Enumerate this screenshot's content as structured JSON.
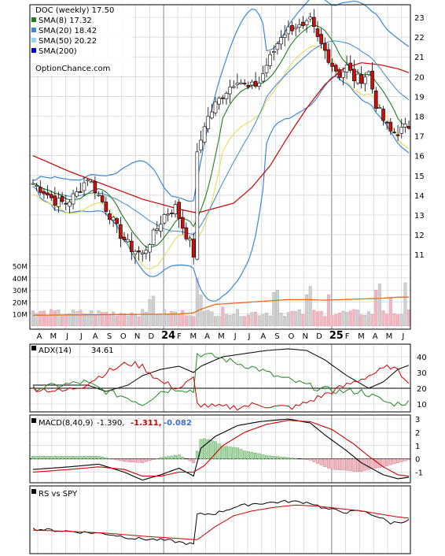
{
  "colors": {
    "grid": "#c8c8c8",
    "frame": "#000000",
    "sma8": "#1e7d1e",
    "sma20": "#3a87d6",
    "sma50": "#9bd2f0",
    "sma200": "#0000cc",
    "long_ma": "#cc0000",
    "band_low": "#e8d84a",
    "candle_up": "#ffffff",
    "candle_down": "#cc1111",
    "volume_up": "#d0d0d0",
    "volume_down": "#f0b8c0",
    "volume_ma": "#e07020",
    "adx": "#000000",
    "plus_di": "#228822",
    "minus_di": "#cc0000",
    "macd": "#000000",
    "signal": "#cc0000",
    "hist_pos": "#a6d8a6",
    "hist_neg": "#f0b8c0",
    "macd_val1": "#cc0000",
    "macd_val2": "#3a6fd6",
    "rs": "#000000",
    "rs_ma": "#cc0000"
  },
  "chart_data": [
    {
      "type": "candlestick",
      "panel": "price",
      "legend": {
        "title": "DOC (weekly) 17.50",
        "items": [
          {
            "label": "SMA(8) 17.32",
            "color": "#1e7d1e"
          },
          {
            "label": "SMA(20) 18.42",
            "color": "#3a87d6"
          },
          {
            "label": "SMA(50) 20.22",
            "color": "#9bd2f0"
          },
          {
            "label": "SMA(200)",
            "color": "#0000cc"
          }
        ],
        "source": "OptionChance.com"
      },
      "y_ticks": [
        "23",
        "22",
        "21",
        "20",
        "19",
        "18",
        "17",
        "16",
        "15",
        "14",
        "13",
        "12",
        "11"
      ],
      "y_tick_values": [
        23,
        22,
        21,
        20,
        19,
        18,
        17,
        16,
        15,
        14,
        13,
        12,
        11
      ],
      "ylim": [
        10,
        23.5
      ],
      "x_tick_labels": [
        "A",
        "M",
        "J",
        "J",
        "A",
        "S",
        "O",
        "N",
        "D",
        "24",
        "F",
        "M",
        "A",
        "M",
        "J",
        "J",
        "A",
        "S",
        "O",
        "N",
        "D",
        "25",
        "F",
        "M",
        "A",
        "M",
        "J"
      ],
      "weeks": 104,
      "anchors_close": [
        [
          0,
          14.6
        ],
        [
          3,
          14.2
        ],
        [
          6,
          13.7
        ],
        [
          9,
          13.6
        ],
        [
          12,
          14.1
        ],
        [
          15,
          14.9
        ],
        [
          18,
          14.0
        ],
        [
          21,
          13.0
        ],
        [
          24,
          12.0
        ],
        [
          27,
          11.3
        ],
        [
          30,
          11.0
        ],
        [
          33,
          12.0
        ],
        [
          36,
          13.0
        ],
        [
          39,
          13.4
        ],
        [
          41,
          12.4
        ],
        [
          43,
          11.6
        ],
        [
          44,
          11.0
        ],
        [
          45,
          16.0
        ],
        [
          47,
          17.6
        ],
        [
          50,
          18.6
        ],
        [
          53,
          19.3
        ],
        [
          56,
          19.9
        ],
        [
          59,
          19.4
        ],
        [
          62,
          19.7
        ],
        [
          64,
          20.6
        ],
        [
          66,
          21.3
        ],
        [
          68,
          22.1
        ],
        [
          70,
          22.4
        ],
        [
          72,
          22.6
        ],
        [
          74,
          22.4
        ],
        [
          76,
          22.8
        ],
        [
          78,
          21.9
        ],
        [
          80,
          21.3
        ],
        [
          82,
          20.6
        ],
        [
          84,
          20.1
        ],
        [
          86,
          20.5
        ],
        [
          88,
          19.9
        ],
        [
          90,
          19.9
        ],
        [
          92,
          20.2
        ],
        [
          94,
          18.6
        ],
        [
          96,
          17.8
        ],
        [
          98,
          17.2
        ],
        [
          100,
          17.2
        ],
        [
          103,
          17.5
        ]
      ],
      "sma200_anchors": [
        [
          0,
          16.0
        ],
        [
          10,
          15.2
        ],
        [
          20,
          14.5
        ],
        [
          30,
          13.8
        ],
        [
          40,
          13.3
        ],
        [
          45,
          13.1
        ],
        [
          55,
          13.6
        ],
        [
          60,
          14.4
        ],
        [
          65,
          15.5
        ],
        [
          70,
          17.0
        ],
        [
          75,
          18.4
        ],
        [
          80,
          19.6
        ],
        [
          85,
          20.4
        ],
        [
          90,
          20.7
        ],
        [
          95,
          20.6
        ],
        [
          100,
          20.4
        ],
        [
          103,
          20.2
        ]
      ],
      "volume": {
        "y_ticks": [
          "50M",
          "40M",
          "30M",
          "20M",
          "10M"
        ],
        "y_tick_values": [
          50,
          40,
          30,
          20,
          10
        ],
        "ylim": [
          0,
          55
        ],
        "base_m": 8,
        "spikes": [
          [
            32,
            22
          ],
          [
            33,
            25
          ],
          [
            45,
            40
          ],
          [
            46,
            26
          ],
          [
            52,
            16
          ],
          [
            53,
            10
          ],
          [
            66,
            28
          ],
          [
            67,
            30
          ],
          [
            75,
            26
          ],
          [
            76,
            33
          ],
          [
            81,
            26
          ],
          [
            94,
            30
          ],
          [
            95,
            35
          ],
          [
            98,
            24
          ],
          [
            102,
            36
          ]
        ],
        "ma_anchors": [
          [
            0,
            9
          ],
          [
            20,
            9.5
          ],
          [
            40,
            10
          ],
          [
            44,
            11
          ],
          [
            46,
            14
          ],
          [
            50,
            18
          ],
          [
            55,
            19
          ],
          [
            60,
            20
          ],
          [
            65,
            21
          ],
          [
            70,
            22
          ],
          [
            75,
            22
          ],
          [
            80,
            21.5
          ],
          [
            85,
            22
          ],
          [
            90,
            22.5
          ],
          [
            95,
            23
          ],
          [
            100,
            24
          ],
          [
            103,
            24
          ]
        ]
      }
    },
    {
      "type": "line",
      "panel": "adx",
      "label_name": "ADX(14)",
      "label_value": "34.61",
      "y_ticks": [
        "40",
        "30",
        "20",
        "10"
      ],
      "y_tick_values": [
        40,
        30,
        20,
        10
      ],
      "ylim": [
        5,
        48
      ],
      "series": [
        {
          "name": "ADX",
          "color": "#000000",
          "anchors": [
            [
              0,
              22
            ],
            [
              8,
              22
            ],
            [
              15,
              22
            ],
            [
              20,
              18
            ],
            [
              26,
              22
            ],
            [
              30,
              28
            ],
            [
              35,
              32
            ],
            [
              40,
              34
            ],
            [
              44,
              30
            ],
            [
              46,
              34
            ],
            [
              52,
              40
            ],
            [
              58,
              42
            ],
            [
              64,
              44
            ],
            [
              70,
              45
            ],
            [
              75,
              44
            ],
            [
              80,
              38
            ],
            [
              86,
              28
            ],
            [
              92,
              20
            ],
            [
              96,
              24
            ],
            [
              100,
              32
            ],
            [
              103,
              34.6
            ]
          ]
        },
        {
          "name": "+DI",
          "color": "#228822",
          "anchors": [
            [
              0,
              20
            ],
            [
              8,
              22
            ],
            [
              14,
              24
            ],
            [
              20,
              18
            ],
            [
              26,
              14
            ],
            [
              30,
              10
            ],
            [
              35,
              18
            ],
            [
              40,
              20
            ],
            [
              44,
              18
            ],
            [
              45,
              42
            ],
            [
              50,
              40
            ],
            [
              56,
              36
            ],
            [
              62,
              32
            ],
            [
              66,
              28
            ],
            [
              72,
              24
            ],
            [
              78,
              20
            ],
            [
              84,
              18
            ],
            [
              90,
              18
            ],
            [
              94,
              14
            ],
            [
              98,
              10
            ],
            [
              103,
              11
            ]
          ]
        },
        {
          "name": "-DI",
          "color": "#cc0000",
          "anchors": [
            [
              0,
              20
            ],
            [
              8,
              18
            ],
            [
              14,
              22
            ],
            [
              20,
              30
            ],
            [
              26,
              36
            ],
            [
              30,
              34
            ],
            [
              35,
              24
            ],
            [
              40,
              20
            ],
            [
              44,
              26
            ],
            [
              45,
              10
            ],
            [
              50,
              8
            ],
            [
              56,
              8
            ],
            [
              62,
              10
            ],
            [
              66,
              8
            ],
            [
              72,
              8
            ],
            [
              78,
              14
            ],
            [
              84,
              20
            ],
            [
              90,
              26
            ],
            [
              94,
              30
            ],
            [
              98,
              34
            ],
            [
              103,
              25
            ]
          ]
        }
      ]
    },
    {
      "type": "line",
      "panel": "macd",
      "label_name": "MACD(8,40,9)",
      "label_value": "-1.390,",
      "extra_values": [
        {
          "text": "-1.311,",
          "color": "#cc0000"
        },
        {
          "text": "-0.082",
          "color": "#3a6fd6"
        }
      ],
      "y_ticks": [
        "3",
        "2",
        "1",
        "0",
        "-1"
      ],
      "y_tick_values": [
        3,
        2,
        1,
        0,
        -1
      ],
      "ylim": [
        -1.8,
        3.3
      ],
      "series": [
        {
          "name": "MACD",
          "color": "#000000",
          "anchors": [
            [
              0,
              -0.8
            ],
            [
              10,
              -0.6
            ],
            [
              18,
              -0.4
            ],
            [
              25,
              -1.0
            ],
            [
              30,
              -1.6
            ],
            [
              35,
              -1.2
            ],
            [
              40,
              -0.7
            ],
            [
              44,
              -1.3
            ],
            [
              46,
              0.8
            ],
            [
              50,
              1.7
            ],
            [
              56,
              2.5
            ],
            [
              62,
              2.8
            ],
            [
              70,
              3.0
            ],
            [
              76,
              2.7
            ],
            [
              80,
              1.8
            ],
            [
              86,
              0.6
            ],
            [
              90,
              -0.3
            ],
            [
              96,
              -1.2
            ],
            [
              100,
              -1.5
            ],
            [
              103,
              -1.39
            ]
          ]
        },
        {
          "name": "Signal",
          "color": "#cc0000",
          "anchors": [
            [
              0,
              -1.0
            ],
            [
              10,
              -0.8
            ],
            [
              18,
              -0.6
            ],
            [
              25,
              -0.8
            ],
            [
              30,
              -1.3
            ],
            [
              35,
              -1.3
            ],
            [
              40,
              -1.0
            ],
            [
              44,
              -1.0
            ],
            [
              47,
              -0.5
            ],
            [
              52,
              1.0
            ],
            [
              58,
              2.0
            ],
            [
              64,
              2.6
            ],
            [
              70,
              2.9
            ],
            [
              76,
              2.8
            ],
            [
              82,
              2.2
            ],
            [
              88,
              1.1
            ],
            [
              92,
              0.2
            ],
            [
              96,
              -0.6
            ],
            [
              100,
              -1.2
            ],
            [
              103,
              -1.31
            ]
          ]
        }
      ]
    },
    {
      "type": "line",
      "panel": "rs",
      "label_name": "RS vs SPY",
      "ylim": [
        0,
        1
      ],
      "series": [
        {
          "name": "RS",
          "color": "#000000",
          "anchors": [
            [
              0,
              0.36
            ],
            [
              10,
              0.32
            ],
            [
              20,
              0.28
            ],
            [
              28,
              0.2
            ],
            [
              34,
              0.18
            ],
            [
              38,
              0.16
            ],
            [
              42,
              0.12
            ],
            [
              44,
              0.1
            ],
            [
              45,
              0.6
            ],
            [
              50,
              0.62
            ],
            [
              55,
              0.72
            ],
            [
              60,
              0.78
            ],
            [
              65,
              0.8
            ],
            [
              70,
              0.82
            ],
            [
              76,
              0.8
            ],
            [
              80,
              0.7
            ],
            [
              86,
              0.64
            ],
            [
              90,
              0.66
            ],
            [
              94,
              0.58
            ],
            [
              98,
              0.46
            ],
            [
              103,
              0.5
            ]
          ]
        },
        {
          "name": "RS MA",
          "color": "#cc0000",
          "anchors": [
            [
              0,
              0.34
            ],
            [
              10,
              0.32
            ],
            [
              20,
              0.29
            ],
            [
              30,
              0.24
            ],
            [
              40,
              0.2
            ],
            [
              45,
              0.18
            ],
            [
              50,
              0.4
            ],
            [
              55,
              0.58
            ],
            [
              60,
              0.66
            ],
            [
              66,
              0.72
            ],
            [
              72,
              0.76
            ],
            [
              78,
              0.74
            ],
            [
              84,
              0.7
            ],
            [
              90,
              0.66
            ],
            [
              96,
              0.6
            ],
            [
              100,
              0.56
            ],
            [
              103,
              0.54
            ]
          ]
        }
      ]
    }
  ]
}
